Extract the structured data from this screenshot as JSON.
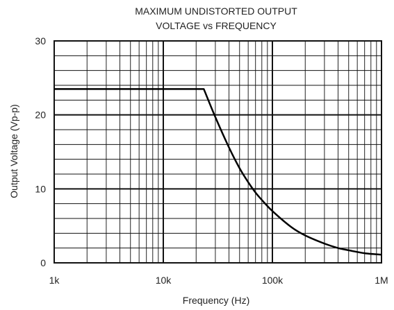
{
  "chart_data": {
    "type": "line",
    "title_line1": "MAXIMUM UNDISTORTED OUTPUT",
    "title_line2": "VOLTAGE vs FREQUENCY",
    "xlabel": "Frequency (Hz)",
    "ylabel": "Output Voltage (Vp-p)",
    "x_scale": "log",
    "xlim": [
      1000,
      1000000
    ],
    "ylim": [
      0,
      30
    ],
    "x_ticks": [
      {
        "value": 1000,
        "label": "1k"
      },
      {
        "value": 10000,
        "label": "10k"
      },
      {
        "value": 100000,
        "label": "100k"
      },
      {
        "value": 1000000,
        "label": "1M"
      }
    ],
    "y_ticks": [
      {
        "value": 0,
        "label": "0"
      },
      {
        "value": 10,
        "label": "10"
      },
      {
        "value": 20,
        "label": "20"
      },
      {
        "value": 30,
        "label": "30"
      }
    ],
    "y_minor_step": 2,
    "grid": true,
    "series": [
      {
        "color": "#000000",
        "x": [
          1000,
          5000,
          10000,
          20000,
          23500,
          30000,
          40000,
          50000,
          60000,
          70000,
          80000,
          100000,
          150000,
          200000,
          300000,
          400000,
          500000,
          700000,
          1000000
        ],
        "y": [
          23.5,
          23.5,
          23.5,
          23.5,
          23.5,
          19.7,
          15.6,
          12.8,
          10.9,
          9.5,
          8.5,
          7.0,
          4.8,
          3.7,
          2.6,
          2.0,
          1.7,
          1.3,
          1.1
        ]
      }
    ]
  }
}
